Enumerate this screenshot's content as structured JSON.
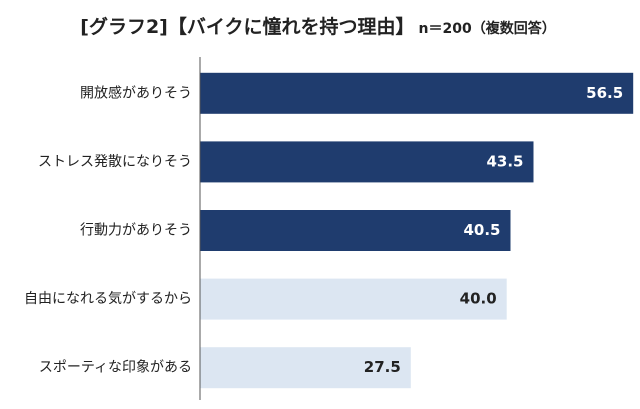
{
  "chart_data": {
    "type": "bar",
    "orientation": "horizontal",
    "title": "[グラフ2]【バイクに憧れを持つ理由】",
    "subtitle": "n＝200（複数回答）",
    "categories": [
      "開放感がありそう",
      "ストレス発散になりそう",
      "行動力がありそう",
      "自由になれる気がするから",
      "スポーティな印象がある"
    ],
    "values": [
      56.5,
      43.5,
      40.5,
      40.0,
      27.5
    ],
    "value_labels": [
      "56.5",
      "43.5",
      "40.5",
      "40.0",
      "27.5"
    ],
    "highlighted": [
      true,
      true,
      true,
      false,
      false
    ],
    "xlim": [
      0,
      60
    ],
    "grid": false,
    "legend": "none",
    "colors": {
      "highlight": "#1f3c6e",
      "normal": "#dce6f2",
      "highlight_text": "#ffffff",
      "normal_text": "#222222",
      "axis": "#555555"
    }
  }
}
